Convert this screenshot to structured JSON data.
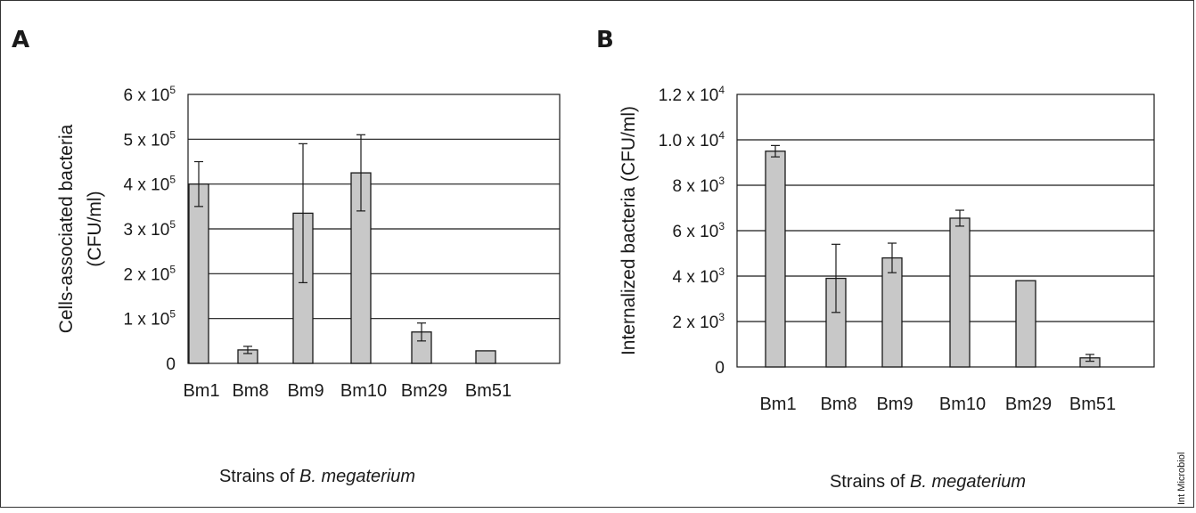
{
  "credit": "Int Microbiol",
  "colors": {
    "bar": "#c8c8c8",
    "stroke": "#1a1a1a",
    "grid": "#1a1a1a"
  },
  "chart_data": [
    {
      "type": "bar",
      "panel_label": "A",
      "ylabel_lines": [
        "Cells-associated bacteria",
        "(CFU/ml)"
      ],
      "xlabel": {
        "prefix": "Strains of ",
        "italic": "B. megaterium"
      },
      "categories": [
        "Bm1",
        "Bm8",
        "Bm9",
        "Bm10",
        "Bm29",
        "Bm51"
      ],
      "values": [
        400000,
        30000,
        335000,
        425000,
        70000,
        28000
      ],
      "errors": [
        50000,
        8000,
        155000,
        85000,
        20000,
        0
      ],
      "ylim": [
        0,
        600000
      ],
      "yticks": [
        {
          "value": 0,
          "base": "0",
          "exp": ""
        },
        {
          "value": 100000,
          "base": "1 x 10",
          "exp": "5"
        },
        {
          "value": 200000,
          "base": "2 x 10",
          "exp": "5"
        },
        {
          "value": 300000,
          "base": "3 x 10",
          "exp": "5"
        },
        {
          "value": 400000,
          "base": "4 x 10",
          "exp": "5"
        },
        {
          "value": 500000,
          "base": "5 x 10",
          "exp": "5"
        },
        {
          "value": 600000,
          "base": "6 x 10",
          "exp": "5"
        }
      ],
      "grid": true
    },
    {
      "type": "bar",
      "panel_label": "B",
      "ylabel_lines": [
        "Internalized bacteria  (CFU/ml)"
      ],
      "xlabel": {
        "prefix": "Strains of ",
        "italic": "B. megaterium"
      },
      "categories": [
        "Bm1",
        "Bm8",
        "Bm9",
        "Bm10",
        "Bm29",
        "Bm51"
      ],
      "values": [
        9500,
        3900,
        4800,
        6550,
        3800,
        400
      ],
      "errors": [
        250,
        1500,
        650,
        350,
        0,
        150
      ],
      "ylim": [
        0,
        12000
      ],
      "yticks": [
        {
          "value": 0,
          "base": "0",
          "exp": ""
        },
        {
          "value": 2000,
          "base": "2 x 10",
          "exp": "3"
        },
        {
          "value": 4000,
          "base": "4 x 10",
          "exp": "3"
        },
        {
          "value": 6000,
          "base": "6 x 10",
          "exp": "3"
        },
        {
          "value": 8000,
          "base": "8 x 10",
          "exp": "3"
        },
        {
          "value": 10000,
          "base": "1.0 x 10",
          "exp": "4"
        },
        {
          "value": 12000,
          "base": "1.2 x 10",
          "exp": "4"
        }
      ],
      "grid": true
    }
  ]
}
